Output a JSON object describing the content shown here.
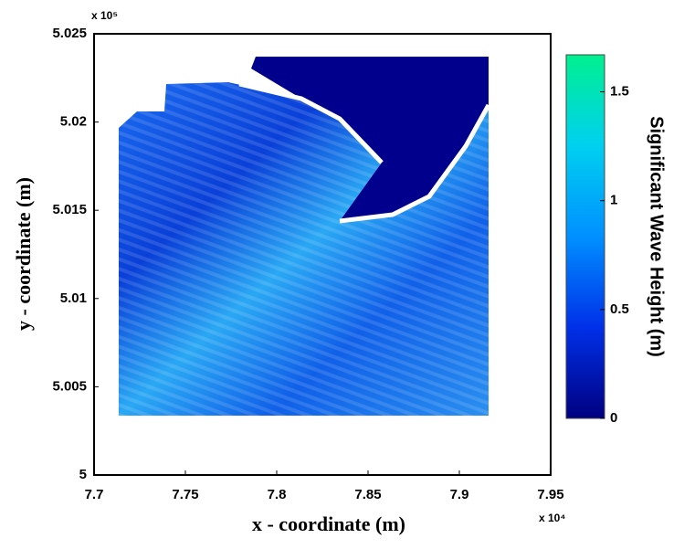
{
  "chart_data": {
    "type": "contour",
    "xlabel": "x - coordinate (m)",
    "ylabel": "y - coordinate (m)",
    "x_multiplier": "x 10⁴",
    "y_multiplier": "x 10⁵",
    "xlim": [
      7.7,
      7.95
    ],
    "xticks": [
      7.7,
      7.75,
      7.8,
      7.85,
      7.9,
      7.95
    ],
    "ylim": [
      5,
      5.025
    ],
    "yticks": [
      5,
      5.005,
      5.01,
      5.015,
      5.02,
      5.025
    ],
    "colorbar": {
      "label": "Significant Wave Height (m)",
      "lim": [
        0,
        1.67
      ],
      "ticks": [
        0,
        0.5,
        1,
        1.5
      ],
      "colormap": [
        "#000080",
        "#0030e8",
        "#0090ff",
        "#00d0f0",
        "#00f090"
      ]
    }
  }
}
